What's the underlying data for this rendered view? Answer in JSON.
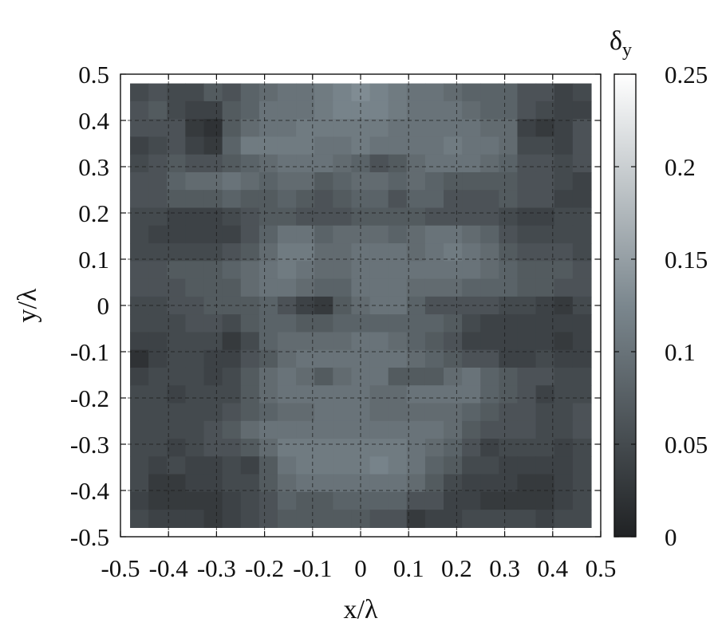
{
  "chart_data": {
    "type": "heatmap",
    "title": "",
    "xlabel": "x/λ",
    "ylabel": "y/λ",
    "colorbar_label": "δ_y",
    "colorbar_symbol": "δ",
    "colorbar_subscript": "y",
    "xlim": [
      -0.5,
      0.5
    ],
    "ylim": [
      -0.5,
      0.5
    ],
    "x_ticks": [
      -0.5,
      -0.4,
      -0.3,
      -0.2,
      -0.1,
      0,
      0.1,
      0.2,
      0.3,
      0.4,
      0.5
    ],
    "x_tick_labels": [
      "-0.5",
      "-0.4",
      "-0.3",
      "-0.2",
      "-0.1",
      "0",
      "0.1",
      "0.2",
      "0.3",
      "0.4",
      "0.5"
    ],
    "y_ticks": [
      0.5,
      0.4,
      0.3,
      0.2,
      0.1,
      0,
      -0.1,
      -0.2,
      -0.3,
      -0.4,
      -0.5
    ],
    "y_tick_labels": [
      "0.5",
      "0.4",
      "0.3",
      "0.2",
      "0.1",
      "0",
      "-0.1",
      "-0.2",
      "-0.3",
      "-0.4",
      "-0.5"
    ],
    "colorbar_range": [
      0,
      0.25
    ],
    "colorbar_ticks": [
      0.25,
      0.2,
      0.15,
      0.1,
      0.05,
      0
    ],
    "colorbar_tick_labels": [
      "0.25",
      "0.2",
      "0.15",
      "0.1",
      "0.05",
      "0"
    ],
    "colormap": [
      "#202224",
      "#7b878e",
      "#ffffff"
    ],
    "grid": true,
    "grid_step": 0.1,
    "cell_count": 25,
    "cell_extent": [
      -0.48,
      0.48
    ],
    "z_rows_top_to_bottom": [
      [
        0.05,
        0.06,
        0.05,
        0.05,
        0.07,
        0.06,
        0.08,
        0.09,
        0.1,
        0.1,
        0.11,
        0.12,
        0.13,
        0.12,
        0.11,
        0.1,
        0.1,
        0.09,
        0.08,
        0.08,
        0.08,
        0.06,
        0.06,
        0.04,
        0.05
      ],
      [
        0.06,
        0.07,
        0.05,
        0.04,
        0.04,
        0.07,
        0.08,
        0.1,
        0.1,
        0.1,
        0.11,
        0.12,
        0.12,
        0.12,
        0.11,
        0.1,
        0.1,
        0.1,
        0.09,
        0.08,
        0.08,
        0.06,
        0.05,
        0.04,
        0.04
      ],
      [
        0.06,
        0.06,
        0.06,
        0.03,
        0.02,
        0.07,
        0.09,
        0.1,
        0.1,
        0.11,
        0.11,
        0.11,
        0.11,
        0.11,
        0.1,
        0.1,
        0.1,
        0.1,
        0.1,
        0.09,
        0.09,
        0.04,
        0.03,
        0.04,
        0.06
      ],
      [
        0.04,
        0.05,
        0.06,
        0.04,
        0.03,
        0.08,
        0.11,
        0.11,
        0.11,
        0.11,
        0.1,
        0.1,
        0.11,
        0.1,
        0.1,
        0.1,
        0.1,
        0.11,
        0.1,
        0.1,
        0.09,
        0.05,
        0.05,
        0.04,
        0.06
      ],
      [
        0.05,
        0.06,
        0.07,
        0.06,
        0.06,
        0.07,
        0.08,
        0.09,
        0.1,
        0.1,
        0.1,
        0.09,
        0.08,
        0.06,
        0.07,
        0.09,
        0.1,
        0.1,
        0.1,
        0.09,
        0.08,
        0.06,
        0.06,
        0.05,
        0.06
      ],
      [
        0.06,
        0.06,
        0.08,
        0.09,
        0.09,
        0.1,
        0.09,
        0.08,
        0.09,
        0.09,
        0.07,
        0.08,
        0.09,
        0.09,
        0.08,
        0.09,
        0.08,
        0.07,
        0.07,
        0.07,
        0.07,
        0.06,
        0.06,
        0.05,
        0.04
      ],
      [
        0.06,
        0.06,
        0.07,
        0.07,
        0.07,
        0.08,
        0.07,
        0.07,
        0.08,
        0.07,
        0.06,
        0.07,
        0.08,
        0.08,
        0.06,
        0.08,
        0.08,
        0.06,
        0.06,
        0.06,
        0.07,
        0.06,
        0.06,
        0.04,
        0.04
      ],
      [
        0.05,
        0.05,
        0.04,
        0.04,
        0.04,
        0.05,
        0.06,
        0.07,
        0.07,
        0.06,
        0.06,
        0.06,
        0.07,
        0.07,
        0.07,
        0.07,
        0.06,
        0.06,
        0.06,
        0.06,
        0.05,
        0.04,
        0.04,
        0.05,
        0.05
      ],
      [
        0.05,
        0.04,
        0.04,
        0.04,
        0.04,
        0.04,
        0.06,
        0.08,
        0.1,
        0.1,
        0.08,
        0.09,
        0.09,
        0.09,
        0.08,
        0.09,
        0.1,
        0.1,
        0.09,
        0.08,
        0.06,
        0.05,
        0.05,
        0.05,
        0.05
      ],
      [
        0.05,
        0.05,
        0.05,
        0.05,
        0.05,
        0.06,
        0.07,
        0.09,
        0.11,
        0.11,
        0.09,
        0.09,
        0.1,
        0.1,
        0.1,
        0.09,
        0.1,
        0.11,
        0.1,
        0.09,
        0.07,
        0.06,
        0.06,
        0.06,
        0.05
      ],
      [
        0.06,
        0.06,
        0.07,
        0.07,
        0.07,
        0.08,
        0.09,
        0.1,
        0.11,
        0.1,
        0.09,
        0.09,
        0.1,
        0.1,
        0.1,
        0.1,
        0.1,
        0.1,
        0.1,
        0.09,
        0.08,
        0.07,
        0.07,
        0.07,
        0.06
      ],
      [
        0.06,
        0.06,
        0.06,
        0.07,
        0.07,
        0.07,
        0.09,
        0.1,
        0.1,
        0.09,
        0.08,
        0.08,
        0.1,
        0.1,
        0.1,
        0.09,
        0.09,
        0.09,
        0.08,
        0.08,
        0.08,
        0.07,
        0.07,
        0.06,
        0.06
      ],
      [
        0.05,
        0.05,
        0.06,
        0.06,
        0.07,
        0.07,
        0.07,
        0.08,
        0.06,
        0.04,
        0.03,
        0.07,
        0.09,
        0.1,
        0.1,
        0.08,
        0.06,
        0.06,
        0.06,
        0.06,
        0.05,
        0.05,
        0.04,
        0.03,
        0.05
      ],
      [
        0.05,
        0.05,
        0.05,
        0.06,
        0.06,
        0.05,
        0.07,
        0.08,
        0.08,
        0.07,
        0.07,
        0.08,
        0.08,
        0.08,
        0.08,
        0.08,
        0.08,
        0.07,
        0.05,
        0.04,
        0.04,
        0.04,
        0.04,
        0.04,
        0.04
      ],
      [
        0.04,
        0.04,
        0.05,
        0.05,
        0.05,
        0.03,
        0.05,
        0.08,
        0.09,
        0.09,
        0.09,
        0.09,
        0.1,
        0.1,
        0.09,
        0.08,
        0.07,
        0.06,
        0.04,
        0.04,
        0.04,
        0.04,
        0.04,
        0.03,
        0.04
      ],
      [
        0.02,
        0.04,
        0.05,
        0.05,
        0.04,
        0.04,
        0.06,
        0.07,
        0.09,
        0.1,
        0.1,
        0.1,
        0.1,
        0.1,
        0.1,
        0.09,
        0.08,
        0.07,
        0.06,
        0.06,
        0.04,
        0.04,
        0.05,
        0.04,
        0.04
      ],
      [
        0.04,
        0.05,
        0.05,
        0.05,
        0.04,
        0.05,
        0.07,
        0.09,
        0.1,
        0.09,
        0.07,
        0.09,
        0.1,
        0.1,
        0.07,
        0.07,
        0.07,
        0.09,
        0.1,
        0.08,
        0.07,
        0.06,
        0.06,
        0.05,
        0.05
      ],
      [
        0.05,
        0.05,
        0.04,
        0.05,
        0.05,
        0.05,
        0.07,
        0.09,
        0.1,
        0.1,
        0.1,
        0.1,
        0.1,
        0.09,
        0.09,
        0.1,
        0.1,
        0.1,
        0.1,
        0.08,
        0.07,
        0.06,
        0.04,
        0.05,
        0.05
      ],
      [
        0.05,
        0.05,
        0.05,
        0.05,
        0.05,
        0.06,
        0.07,
        0.08,
        0.09,
        0.09,
        0.1,
        0.1,
        0.1,
        0.09,
        0.09,
        0.09,
        0.09,
        0.09,
        0.08,
        0.07,
        0.06,
        0.06,
        0.05,
        0.05,
        0.06
      ],
      [
        0.05,
        0.05,
        0.05,
        0.05,
        0.06,
        0.07,
        0.09,
        0.1,
        0.1,
        0.1,
        0.1,
        0.1,
        0.1,
        0.1,
        0.1,
        0.1,
        0.1,
        0.09,
        0.07,
        0.06,
        0.06,
        0.06,
        0.05,
        0.05,
        0.06
      ],
      [
        0.05,
        0.05,
        0.04,
        0.05,
        0.06,
        0.06,
        0.07,
        0.09,
        0.11,
        0.11,
        0.11,
        0.11,
        0.11,
        0.11,
        0.11,
        0.1,
        0.09,
        0.08,
        0.06,
        0.04,
        0.05,
        0.05,
        0.05,
        0.04,
        0.05
      ],
      [
        0.05,
        0.04,
        0.05,
        0.04,
        0.04,
        0.05,
        0.04,
        0.07,
        0.1,
        0.11,
        0.11,
        0.11,
        0.11,
        0.12,
        0.11,
        0.1,
        0.08,
        0.07,
        0.05,
        0.05,
        0.04,
        0.04,
        0.04,
        0.04,
        0.05
      ],
      [
        0.05,
        0.03,
        0.03,
        0.04,
        0.04,
        0.05,
        0.05,
        0.07,
        0.09,
        0.1,
        0.1,
        0.1,
        0.1,
        0.1,
        0.1,
        0.09,
        0.07,
        0.05,
        0.04,
        0.04,
        0.04,
        0.03,
        0.03,
        0.04,
        0.05
      ],
      [
        0.04,
        0.03,
        0.03,
        0.03,
        0.03,
        0.04,
        0.05,
        0.06,
        0.08,
        0.07,
        0.07,
        0.08,
        0.08,
        0.08,
        0.08,
        0.06,
        0.06,
        0.04,
        0.04,
        0.03,
        0.03,
        0.03,
        0.03,
        0.04,
        0.05
      ],
      [
        0.05,
        0.04,
        0.04,
        0.04,
        0.03,
        0.04,
        0.05,
        0.06,
        0.07,
        0.07,
        0.07,
        0.07,
        0.07,
        0.06,
        0.06,
        0.03,
        0.04,
        0.04,
        0.05,
        0.05,
        0.05,
        0.05,
        0.04,
        0.05,
        0.05
      ]
    ]
  }
}
